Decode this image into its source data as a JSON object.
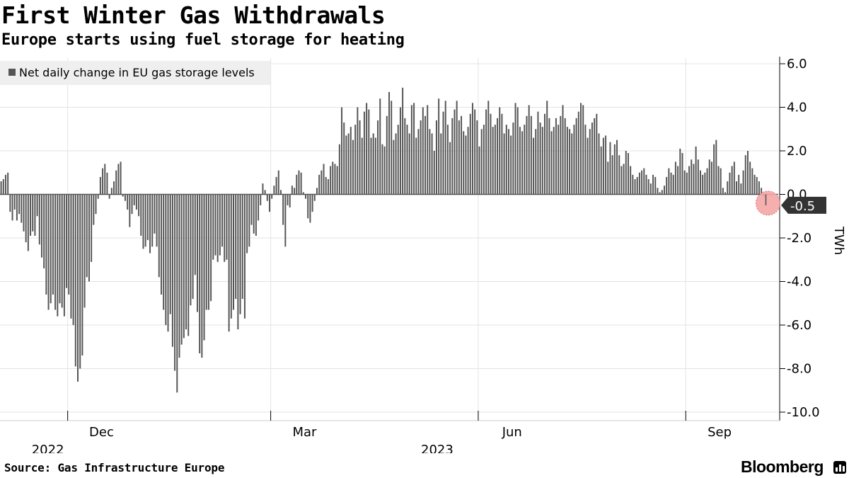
{
  "header": {
    "title": "First Winter Gas Withdrawals",
    "subtitle": "Europe starts using fuel storage for heating"
  },
  "footer": {
    "source": "Source: Gas Infrastructure Europe",
    "brand": "Bloomberg"
  },
  "colors": {
    "bar": "#555555",
    "grid": "#e3e3e3",
    "axis": "#000000",
    "legend_bg": "#efefef",
    "callout_bg": "#333333",
    "callout_text": "#ffffff",
    "highlight": "#f4a6a6"
  },
  "chart_data": {
    "type": "bar",
    "title": "First Winter Gas Withdrawals",
    "subtitle": "Europe starts using fuel storage for heating",
    "legend": [
      "Net daily change in EU gas storage levels"
    ],
    "legend_position": "top-left",
    "ylabel": "TWh",
    "ylim": [
      -10.0,
      6.0
    ],
    "yticks": [
      6.0,
      4.0,
      2.0,
      0.0,
      -2.0,
      -4.0,
      -6.0,
      -8.0,
      -10.0
    ],
    "ytick_labels": [
      "6.0",
      "4.0",
      "2.0",
      "0.0",
      "-2.0",
      "-4.0",
      "-6.0",
      "-8.0",
      "-10.0"
    ],
    "xtick_labels": [
      "Dec",
      "Mar",
      "Jun",
      "Sep"
    ],
    "year_labels": [
      "2022",
      "2023"
    ],
    "x_start": "2022-11-01",
    "x_end": "2023-10-12",
    "latest_value": -0.5,
    "latest_label": "-0.5",
    "series": [
      {
        "name": "Net daily change in EU gas storage levels",
        "start": "2022-11-01",
        "values": [
          0.6,
          0.7,
          0.9,
          1.0,
          -0.8,
          -1.2,
          -0.7,
          -1.2,
          -0.9,
          -1.3,
          -1.7,
          -2.2,
          -2.6,
          -1.9,
          -1.7,
          -1.9,
          -1.0,
          -2.3,
          -2.9,
          -3.4,
          -4.6,
          -5.3,
          -5.0,
          -4.6,
          -5.3,
          -5.6,
          -5.0,
          -5.2,
          -5.6,
          -4.3,
          -4.6,
          -5.7,
          -6.0,
          -7.9,
          -8.6,
          -8.0,
          -7.4,
          -5.2,
          -3.8,
          -4.0,
          -3.1,
          -1.4,
          -0.9,
          -0.2,
          0.8,
          1.2,
          1.4,
          1.0,
          -0.2,
          0.3,
          0.6,
          1.1,
          1.4,
          1.5,
          -0.1,
          -0.3,
          -0.7,
          -1.5,
          -0.9,
          -0.5,
          -0.7,
          -1.0,
          -1.9,
          -2.5,
          -2.4,
          -2.1,
          -2.7,
          -2.4,
          -1.8,
          -2.4,
          -3.8,
          -4.6,
          -5.3,
          -6.0,
          -6.3,
          -5.5,
          -7.0,
          -8.1,
          -9.1,
          -7.5,
          -6.9,
          -6.6,
          -6.2,
          -6.5,
          -5.1,
          -4.8,
          -3.7,
          -5.4,
          -7.3,
          -7.5,
          -6.7,
          -5.3,
          -5.3,
          -4.9,
          -3.0,
          -2.8,
          -3.1,
          -2.8,
          -2.4,
          -3.1,
          -3.0,
          -6.3,
          -5.7,
          -5.3,
          -4.8,
          -6.2,
          -5.5,
          -4.8,
          -5.7,
          -2.7,
          -2.4,
          -1.4,
          -1.8,
          -1.9,
          -1.2,
          -0.5,
          0.5,
          0.2,
          -0.3,
          -0.8,
          -0.2,
          0.4,
          0.8,
          1.1,
          0.2,
          -1.4,
          -2.4,
          -0.5,
          -0.6,
          0.4,
          0.3,
          0.9,
          1.1,
          1.0,
          0.1,
          -0.2,
          -1.1,
          -1.3,
          -0.8,
          -0.3,
          0.3,
          0.9,
          1.1,
          1.4,
          0.8,
          0.7,
          1.3,
          1.5,
          1.4,
          1.3,
          2.3,
          4.0,
          3.3,
          2.7,
          2.8,
          3.1,
          2.5,
          3.2,
          4.0,
          3.4,
          2.6,
          3.8,
          4.2,
          3.9,
          2.6,
          2.8,
          2.6,
          3.4,
          4.4,
          2.3,
          2.2,
          3.6,
          4.7,
          4.3,
          2.5,
          2.8,
          3.2,
          4.0,
          4.9,
          3.5,
          3.2,
          2.8,
          4.1,
          4.2,
          2.6,
          3.0,
          3.4,
          4.0,
          3.6,
          4.1,
          3.0,
          2.8,
          2.0,
          3.4,
          4.4,
          2.8,
          3.8,
          4.3,
          3.2,
          2.4,
          3.5,
          3.9,
          4.3,
          3.4,
          3.6,
          2.9,
          2.7,
          3.1,
          3.7,
          4.2,
          3.9,
          3.4,
          2.2,
          3.0,
          3.2,
          3.9,
          4.3,
          3.7,
          3.1,
          3.2,
          3.5,
          4.0,
          3.7,
          2.8,
          3.2,
          3.0,
          2.7,
          3.3,
          4.2,
          4.0,
          3.1,
          2.9,
          3.2,
          3.6,
          4.1,
          3.6,
          2.6,
          3.0,
          3.8,
          3.3,
          3.1,
          3.7,
          4.3,
          3.5,
          2.9,
          3.1,
          3.5,
          3.2,
          3.6,
          4.1,
          3.5,
          3.1,
          3.0,
          2.8,
          3.2,
          3.5,
          3.8,
          4.2,
          4.1,
          3.2,
          2.6,
          3.0,
          3.3,
          3.5,
          3.7,
          2.8,
          2.2,
          2.6,
          2.7,
          1.5,
          2.4,
          1.8,
          2.3,
          2.5,
          1.8,
          1.3,
          1.4,
          2.0,
          1.9,
          1.3,
          0.9,
          0.7,
          0.8,
          1.0,
          1.1,
          1.2,
          0.9,
          0.7,
          0.5,
          0.9,
          0.8,
          0.3,
          0.1,
          0.2,
          0.4,
          0.8,
          1.2,
          1.0,
          0.9,
          1.5,
          1.3,
          2.1,
          1.9,
          1.1,
          1.0,
          1.3,
          1.6,
          1.4,
          2.2,
          1.6,
          1.1,
          0.9,
          1.0,
          1.2,
          1.6,
          1.5,
          2.3,
          2.5,
          1.3,
          1.2,
          0.3,
          0.1,
          0.6,
          1.0,
          1.3,
          1.5,
          0.6,
          0.9,
          0.5,
          1.1,
          1.8,
          2.0,
          1.5,
          1.2,
          0.9,
          0.8,
          0.6,
          0.3,
          -0.1,
          -0.5
        ]
      }
    ]
  }
}
